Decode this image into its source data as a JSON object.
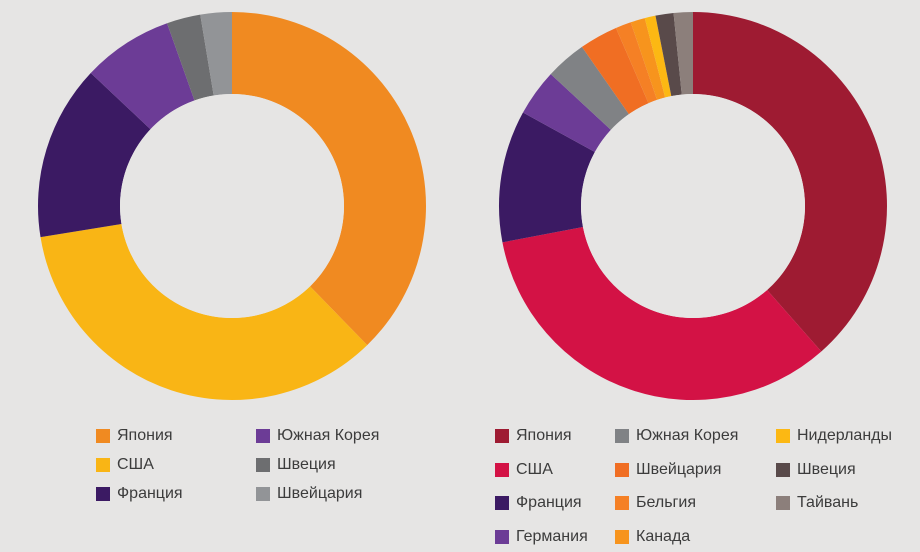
{
  "chart_data": [
    {
      "type": "pie",
      "donut": true,
      "categories": [
        "Япония",
        "США",
        "Франция",
        "Южная Корея",
        "Швеция",
        "Швейцария"
      ],
      "values": [
        37.5,
        34.5,
        14.5,
        7.5,
        2.8,
        2.6
      ],
      "colors": [
        "#f08a21",
        "#f9b515",
        "#3b1a63",
        "#6c3c96",
        "#6d6e70",
        "#929497"
      ],
      "legend": [
        {
          "label": "Япония",
          "color": "#f08a21"
        },
        {
          "label": "США",
          "color": "#f9b515"
        },
        {
          "label": "Франция",
          "color": "#3b1a63"
        },
        {
          "label": "Южная Корея",
          "color": "#6c3c96"
        },
        {
          "label": "Швеция",
          "color": "#6d6e70"
        },
        {
          "label": "Швейцария",
          "color": "#929497"
        }
      ],
      "legend_placement": "bottom"
    },
    {
      "type": "pie",
      "donut": true,
      "categories": [
        "Япония",
        "США",
        "Франция",
        "Германия",
        "Южная Корея",
        "Швейцария",
        "Бельгия",
        "Канада",
        "Нидерланды",
        "Швеция",
        "Тайвань"
      ],
      "values": [
        38.5,
        33.5,
        11.0,
        3.9,
        3.4,
        3.2,
        1.3,
        1.2,
        0.9,
        1.5,
        1.6
      ],
      "colors": [
        "#9e1b32",
        "#d31245",
        "#3b1a63",
        "#6c3c96",
        "#808285",
        "#f06e23",
        "#f58025",
        "#f7941d",
        "#fcb813",
        "#594a4a",
        "#8c7f7b"
      ],
      "legend": [
        {
          "label": "Япония",
          "color": "#9e1b32"
        },
        {
          "label": "США",
          "color": "#d31245"
        },
        {
          "label": "Франция",
          "color": "#3b1a63"
        },
        {
          "label": "Германия",
          "color": "#6c3c96"
        },
        {
          "label": "Южная Корея",
          "color": "#808285"
        },
        {
          "label": "Швейцария",
          "color": "#f06e23"
        },
        {
          "label": "Бельгия",
          "color": "#f58025"
        },
        {
          "label": "Канада",
          "color": "#f7941d"
        },
        {
          "label": "Нидерланды",
          "color": "#fcb813"
        },
        {
          "label": "Швеция",
          "color": "#594a4a"
        },
        {
          "label": "Тайвань",
          "color": "#8c7f7b"
        }
      ],
      "legend_placement": "bottom"
    }
  ]
}
